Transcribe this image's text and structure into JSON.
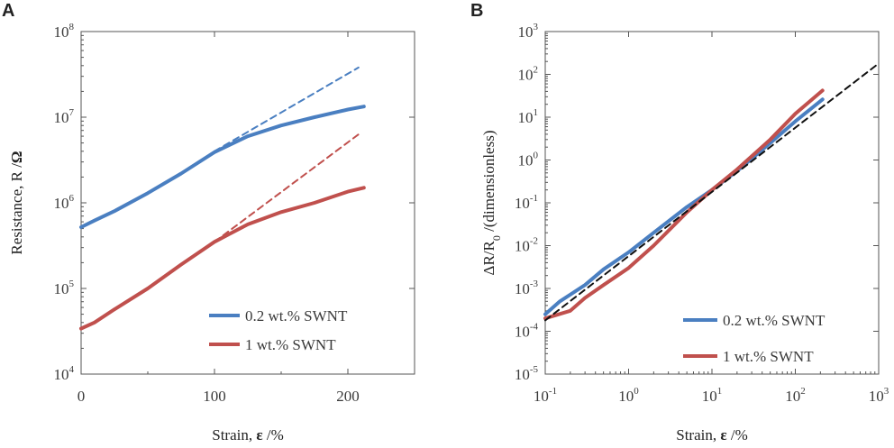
{
  "chart_data": [
    {
      "panel": "A",
      "type": "line",
      "xlabel_prefix": "Strain, ",
      "xlabel_symbol": "ε",
      "xlabel_suffix": " /%",
      "ylabel_prefix": "Resistance, R /",
      "ylabel_symbol": "Ω",
      "xscale": "linear",
      "yscale": "log",
      "xlim": [
        0,
        250
      ],
      "ylim": [
        10000,
        100000000
      ],
      "x_ticks": [
        {
          "value": 0,
          "label": "0"
        },
        {
          "value": 100,
          "label": "100"
        },
        {
          "value": 200,
          "label": "200"
        }
      ],
      "y_ticks": [
        {
          "value": 10000,
          "base": "10",
          "exp": "4"
        },
        {
          "value": 100000,
          "base": "10",
          "exp": "5"
        },
        {
          "value": 1000000,
          "base": "10",
          "exp": "6"
        },
        {
          "value": 10000000,
          "base": "10",
          "exp": "7"
        },
        {
          "value": 100000000,
          "base": "10",
          "exp": "8"
        }
      ],
      "legend_position": "bottom-right",
      "series": [
        {
          "name": "0.2 wt.% SWNT",
          "color": "#4a7fc1",
          "style": "solid",
          "x": [
            0,
            10,
            25,
            50,
            75,
            100,
            125,
            150,
            175,
            200,
            212
          ],
          "y": [
            520000,
            620000,
            800000,
            1300000,
            2200000,
            3900000,
            6000000,
            8000000,
            10000000,
            12300000,
            13300000
          ]
        },
        {
          "name": "0.2 wt.% SWNT fit",
          "color": "#4a7fc1",
          "style": "dashed",
          "legend": false,
          "x": [
            100,
            208
          ],
          "y": [
            4000000,
            38000000
          ]
        },
        {
          "name": "1 wt.% SWNT",
          "color": "#c0504d",
          "style": "solid",
          "x": [
            0,
            10,
            25,
            50,
            75,
            100,
            125,
            150,
            175,
            200,
            212
          ],
          "y": [
            34000,
            40000,
            57000,
            100000,
            190000,
            350000,
            560000,
            780000,
            1000000,
            1350000,
            1500000
          ]
        },
        {
          "name": "1 wt.% SWNT fit",
          "color": "#c0504d",
          "style": "dashed",
          "legend": false,
          "x": [
            100,
            208
          ],
          "y": [
            350000,
            6300000
          ]
        }
      ]
    },
    {
      "panel": "B",
      "type": "line",
      "xlabel_prefix": "Strain, ",
      "xlabel_symbol": "ε",
      "xlabel_suffix": " /%",
      "ylabel_parts": [
        "ΔR/R",
        "0",
        " /(dimensionless)"
      ],
      "xscale": "log",
      "yscale": "log",
      "xlim": [
        0.1,
        1000
      ],
      "ylim": [
        1e-05,
        1000
      ],
      "x_ticks": [
        {
          "value": 0.1,
          "base": "10",
          "exp": "-1"
        },
        {
          "value": 1,
          "base": "10",
          "exp": "0"
        },
        {
          "value": 10,
          "base": "10",
          "exp": "1"
        },
        {
          "value": 100,
          "base": "10",
          "exp": "2"
        },
        {
          "value": 1000,
          "base": "10",
          "exp": "3"
        }
      ],
      "y_ticks": [
        {
          "value": 1e-05,
          "base": "10",
          "exp": "-5"
        },
        {
          "value": 0.0001,
          "base": "10",
          "exp": "-4"
        },
        {
          "value": 0.001,
          "base": "10",
          "exp": "-3"
        },
        {
          "value": 0.01,
          "base": "10",
          "exp": "-2"
        },
        {
          "value": 0.1,
          "base": "10",
          "exp": "-1"
        },
        {
          "value": 1,
          "base": "10",
          "exp": "0"
        },
        {
          "value": 10,
          "base": "10",
          "exp": "1"
        },
        {
          "value": 100,
          "base": "10",
          "exp": "2"
        },
        {
          "value": 1000,
          "base": "10",
          "exp": "3"
        }
      ],
      "legend_position": "bottom-right",
      "series": [
        {
          "name": "0.2 wt.% SWNT",
          "color": "#4a7fc1",
          "style": "solid",
          "x": [
            0.1,
            0.15,
            0.3,
            0.5,
            1,
            2,
            5,
            10,
            20,
            50,
            100,
            212
          ],
          "y": [
            0.00025,
            0.0005,
            0.0012,
            0.0028,
            0.007,
            0.02,
            0.08,
            0.2,
            0.55,
            2.5,
            8,
            26
          ]
        },
        {
          "name": "1 wt.% SWNT",
          "color": "#c0504d",
          "style": "solid",
          "x": [
            0.1,
            0.2,
            0.3,
            0.5,
            1,
            2,
            5,
            10,
            20,
            50,
            100,
            212
          ],
          "y": [
            0.0002,
            0.0003,
            0.0006,
            0.0012,
            0.003,
            0.01,
            0.06,
            0.2,
            0.6,
            3,
            12,
            42
          ]
        },
        {
          "name": "power-law fit",
          "color": "#111111",
          "style": "dashed",
          "legend": false,
          "x": [
            0.1,
            1000
          ],
          "y": [
            0.00018,
            180
          ]
        }
      ]
    }
  ]
}
